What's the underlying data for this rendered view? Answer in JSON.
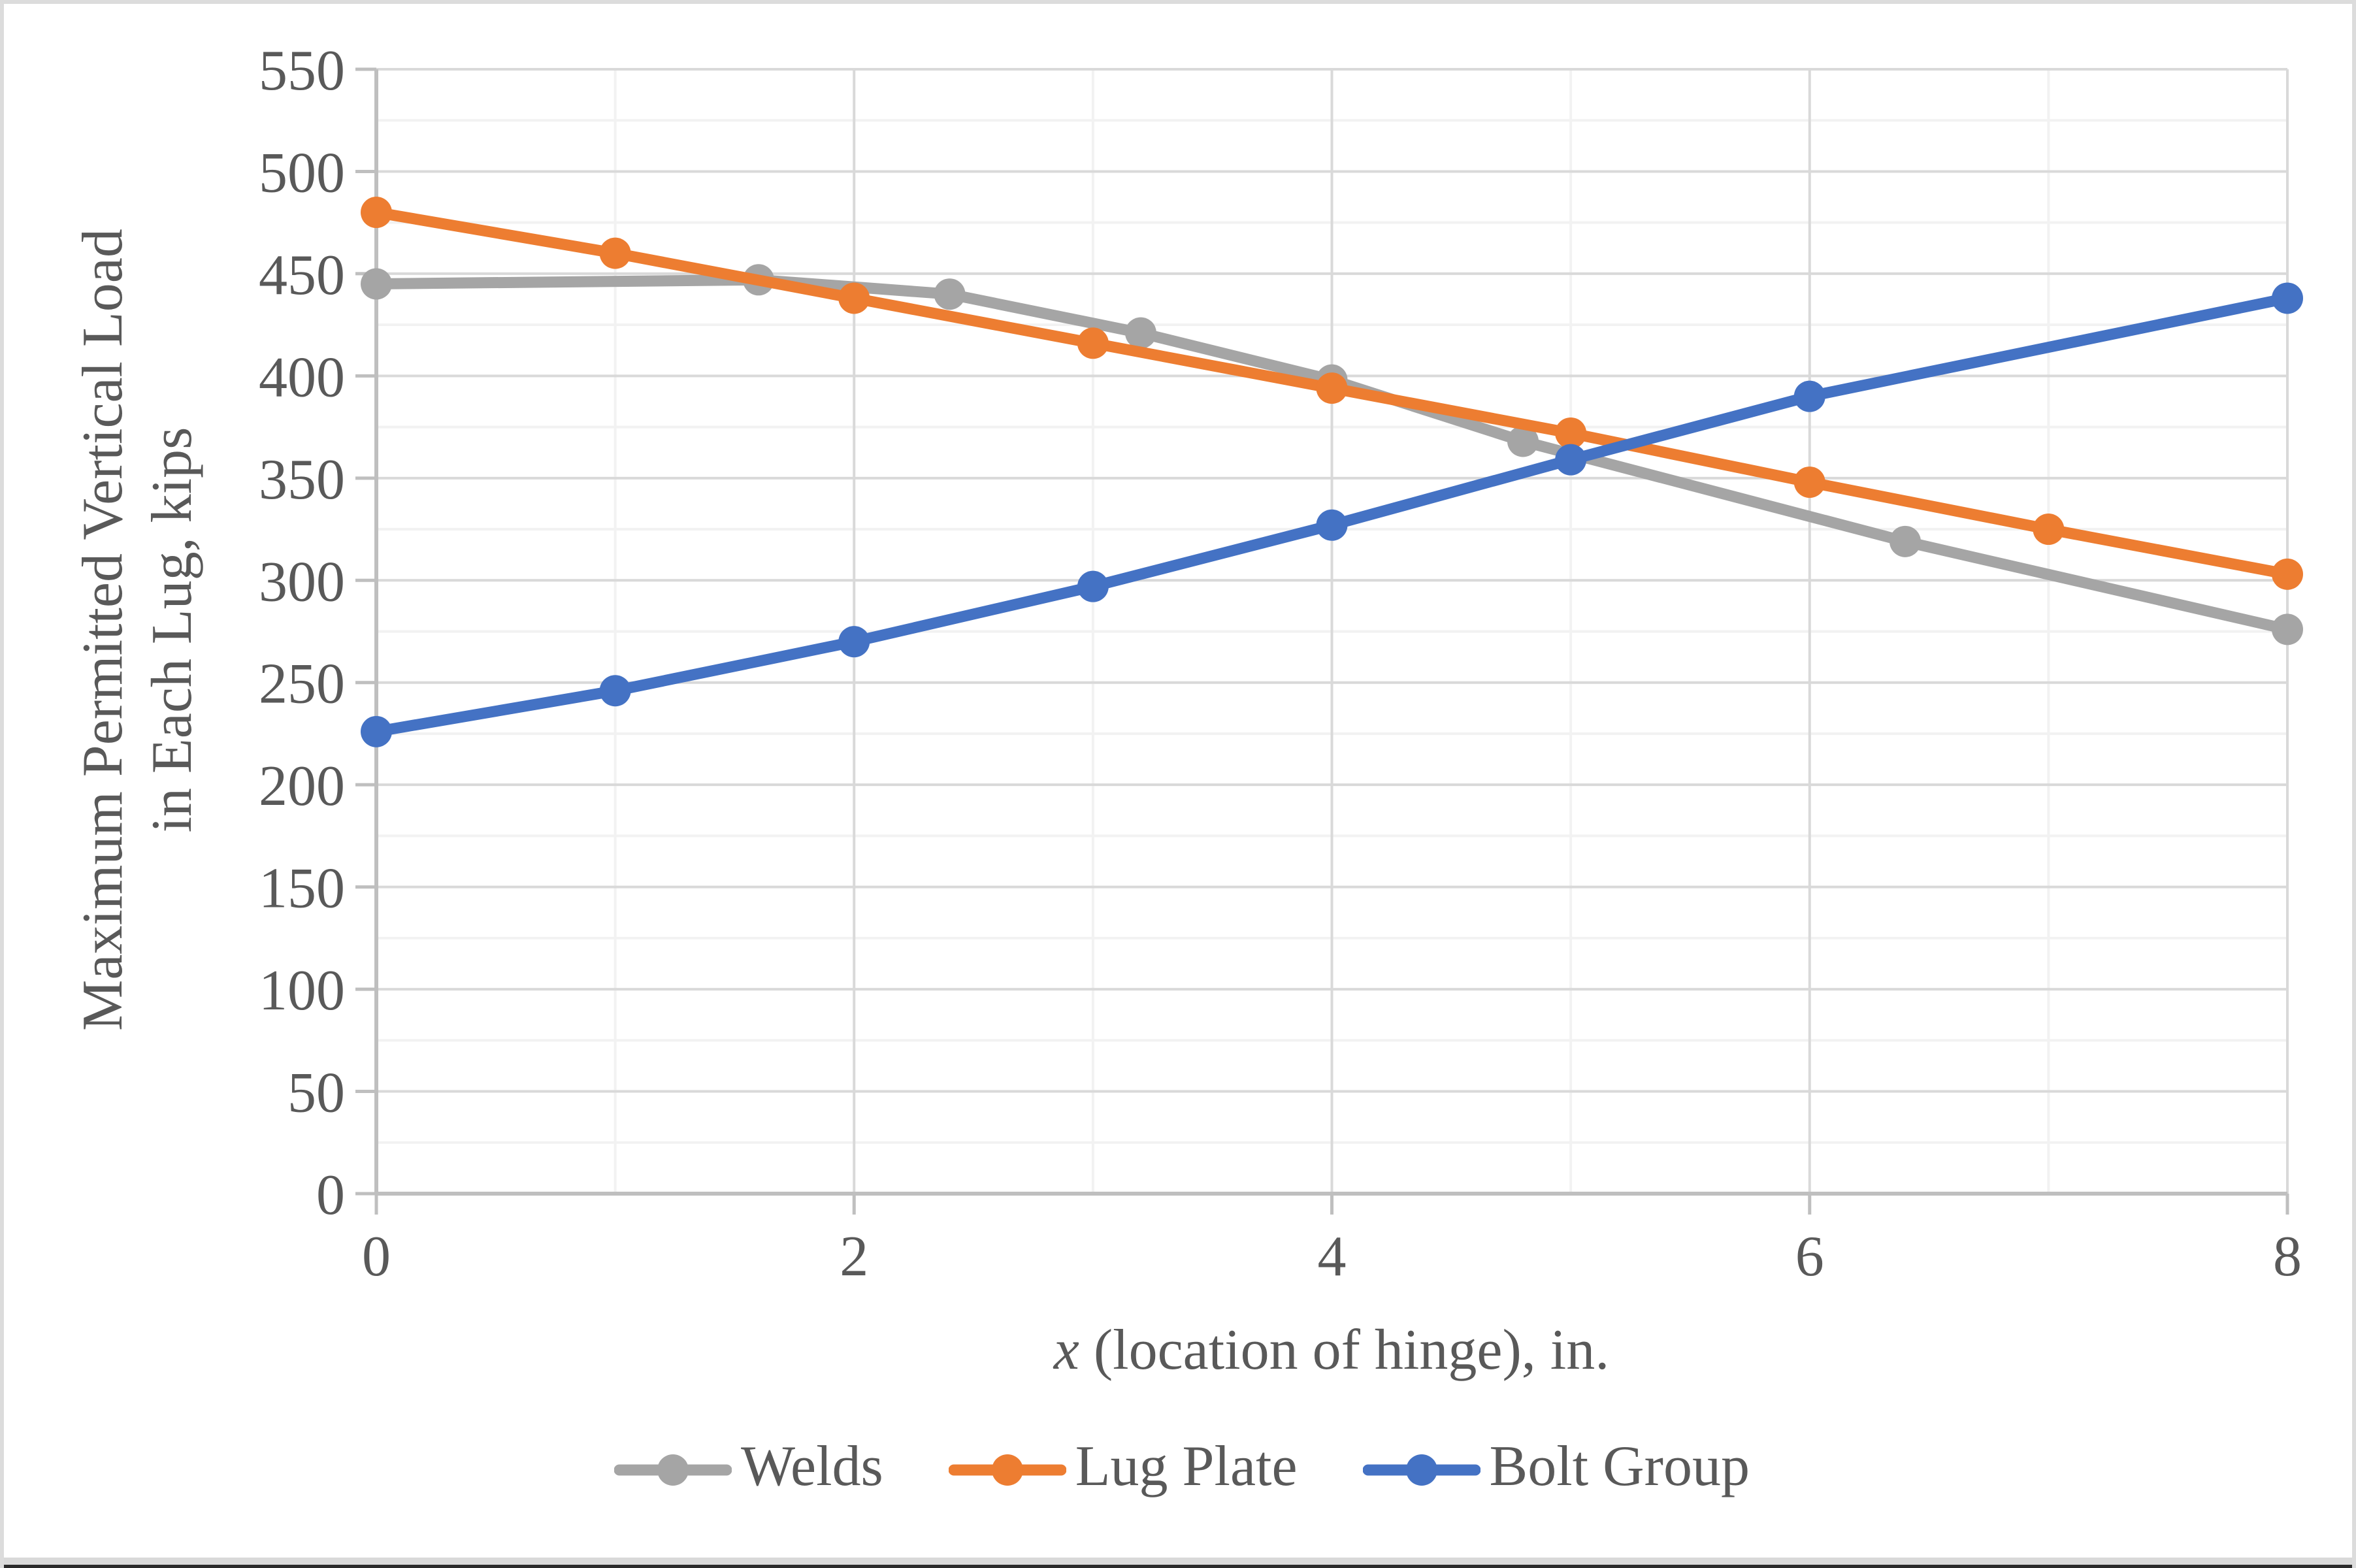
{
  "chart_data": {
    "type": "line",
    "title": "",
    "xlabel_parts": {
      "italic": "x",
      "rest": " (location of hinge), in."
    },
    "ylabel_line1": "Maximum Permitted Vertical Load",
    "ylabel_line2": "in Each Lug, kips",
    "xlim": [
      0,
      8
    ],
    "ylim": [
      0,
      550
    ],
    "x_tick_labels": [
      "0",
      "2",
      "4",
      "6",
      "8"
    ],
    "x_major_ticks": [
      0,
      2,
      4,
      6,
      8
    ],
    "x_minor_ticks": [
      1,
      3,
      5,
      7
    ],
    "y_tick_labels": [
      "0",
      "50",
      "100",
      "150",
      "200",
      "250",
      "300",
      "350",
      "400",
      "450",
      "500",
      "550"
    ],
    "y_major_ticks": [
      0,
      50,
      100,
      150,
      200,
      250,
      300,
      350,
      400,
      450,
      500,
      550
    ],
    "y_minor_step": 25,
    "grid": {
      "major_color": "#d9d9d9",
      "minor_color": "#f2f2f2",
      "axis_color": "#bfbfbf"
    },
    "legend_position": "bottom-center",
    "series": [
      {
        "name": "Welds",
        "color": "#a5a5a5",
        "points": [
          [
            0,
            445
          ],
          [
            1.6,
            447
          ],
          [
            2.4,
            440
          ],
          [
            3.2,
            421
          ],
          [
            4,
            398
          ],
          [
            4.8,
            368
          ],
          [
            6.4,
            319
          ],
          [
            8,
            276
          ]
        ]
      },
      {
        "name": "Lug Plate",
        "color": "#ed7d31",
        "points": [
          [
            0,
            480
          ],
          [
            1,
            460
          ],
          [
            2,
            438
          ],
          [
            3,
            416
          ],
          [
            4,
            394
          ],
          [
            5,
            372
          ],
          [
            6,
            348
          ],
          [
            7,
            325
          ],
          [
            8,
            303
          ]
        ]
      },
      {
        "name": "Bolt Group",
        "color": "#4472c4",
        "points": [
          [
            0,
            226
          ],
          [
            1,
            246
          ],
          [
            2,
            270
          ],
          [
            3,
            297
          ],
          [
            4,
            327
          ],
          [
            5,
            359
          ],
          [
            6,
            390
          ],
          [
            8,
            438
          ]
        ]
      }
    ],
    "text_color": "#595959"
  }
}
